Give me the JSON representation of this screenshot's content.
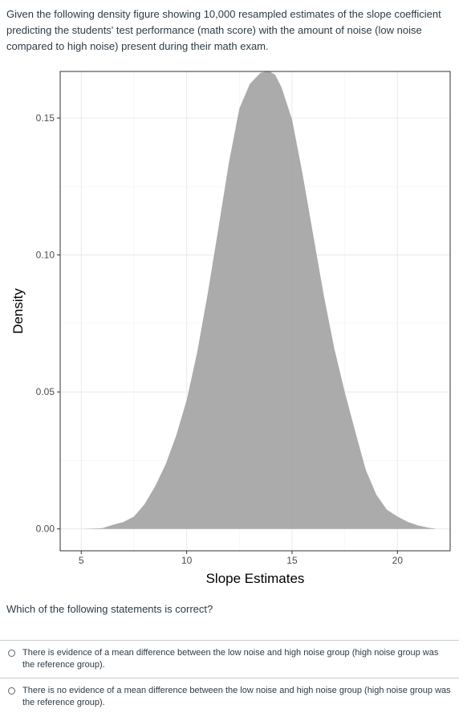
{
  "question": {
    "text": "Given the following density figure showing 10,000 resampled estimates of the slope coefficient predicting the students' test performance (math score) with the amount of noise (low noise compared to high noise) present during their math exam."
  },
  "prompt": "Which of the following statements is correct?",
  "answers": [
    {
      "label": "There is evidence of a mean difference between the low noise and high noise group (high noise group was the reference group)."
    },
    {
      "label": "There is no evidence of a mean difference between the low noise and high noise group (high noise group was the reference group)."
    }
  ],
  "chart_data": {
    "type": "area",
    "title": "",
    "xlabel": "Slope Estimates",
    "ylabel": "Density",
    "xlim": [
      4.0,
      22.5
    ],
    "ylim": [
      -0.008,
      0.167
    ],
    "xticks": [
      5,
      10,
      15,
      20
    ],
    "xtick_labels": [
      "5",
      "10",
      "15",
      "20"
    ],
    "yticks": [
      0.0,
      0.05,
      0.1,
      0.15
    ],
    "ytick_labels": [
      "0.00",
      "0.05",
      "0.10",
      "0.15"
    ],
    "grid": true,
    "legend": "none",
    "fill_color": "#a6a6a6",
    "panel_background": "#ffffff",
    "grid_color": "#ebebeb",
    "series": [
      {
        "x": [
          5.1,
          6.0,
          6.5,
          7.0,
          7.5,
          8.0,
          8.5,
          9.0,
          9.5,
          10.0,
          10.5,
          11.0,
          11.5,
          12.0,
          12.5,
          13.0,
          13.5,
          13.9,
          14.2,
          14.5,
          15.0,
          15.5,
          16.0,
          16.5,
          17.0,
          17.5,
          18.0,
          18.5,
          19.0,
          19.5,
          20.0,
          20.5,
          21.0,
          21.5,
          21.8
        ],
        "y": [
          0.0,
          0.0003,
          0.0015,
          0.0025,
          0.0045,
          0.009,
          0.0155,
          0.0235,
          0.034,
          0.047,
          0.0645,
          0.086,
          0.1095,
          0.1335,
          0.1535,
          0.1625,
          0.1665,
          0.1672,
          0.1658,
          0.1612,
          0.1495,
          0.1295,
          0.1075,
          0.0855,
          0.066,
          0.05,
          0.0355,
          0.0215,
          0.0125,
          0.007,
          0.0045,
          0.0025,
          0.0012,
          0.0004,
          0.0001
        ]
      }
    ]
  }
}
